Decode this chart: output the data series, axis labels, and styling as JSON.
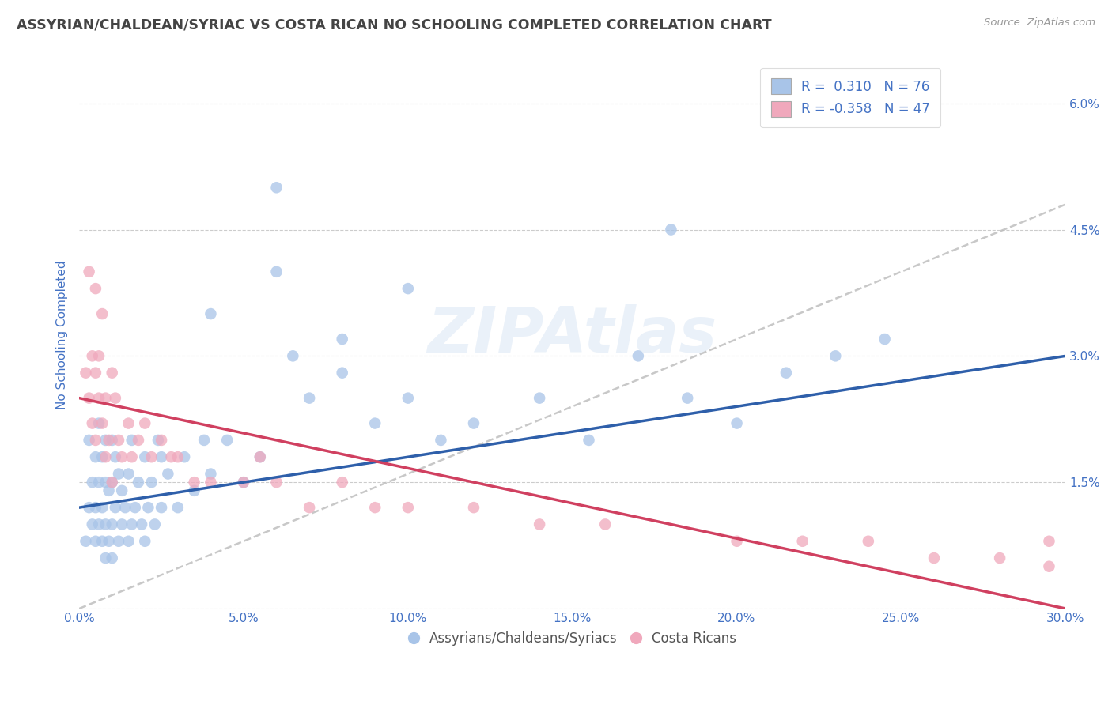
{
  "title": "ASSYRIAN/CHALDEAN/SYRIAC VS COSTA RICAN NO SCHOOLING COMPLETED CORRELATION CHART",
  "source": "Source: ZipAtlas.com",
  "ylabel": "No Schooling Completed",
  "x_min": 0.0,
  "x_max": 0.3,
  "y_min": 0.0,
  "y_max": 0.065,
  "x_ticks": [
    0.0,
    0.05,
    0.1,
    0.15,
    0.2,
    0.25,
    0.3
  ],
  "x_tick_labels": [
    "0.0%",
    "5.0%",
    "10.0%",
    "15.0%",
    "20.0%",
    "25.0%",
    "30.0%"
  ],
  "y_ticks": [
    0.0,
    0.015,
    0.03,
    0.045,
    0.06
  ],
  "y_tick_labels": [
    "",
    "1.5%",
    "3.0%",
    "4.5%",
    "6.0%"
  ],
  "blue_color": "#A8C4E8",
  "pink_color": "#F0A8BC",
  "trend_blue": "#2E5FAA",
  "trend_pink": "#D04060",
  "trend_gray": "#BBBBBB",
  "R_blue": 0.31,
  "N_blue": 76,
  "R_pink": -0.358,
  "N_pink": 47,
  "legend_label_blue": "Assyrians/Chaldeans/Syriacs",
  "legend_label_pink": "Costa Ricans",
  "watermark": "ZIPAtlas",
  "background_color": "#FFFFFF",
  "grid_color": "#CCCCCC",
  "title_color": "#444444",
  "axis_label_color": "#4472C4",
  "tick_color": "#4472C4",
  "blue_trend_start_y": 0.012,
  "blue_trend_end_y": 0.03,
  "pink_trend_start_y": 0.025,
  "pink_trend_end_y": 0.0,
  "gray_trend_start_y": 0.0,
  "gray_trend_end_y": 0.048,
  "blue_scatter_x": [
    0.002,
    0.003,
    0.003,
    0.004,
    0.004,
    0.005,
    0.005,
    0.005,
    0.006,
    0.006,
    0.006,
    0.007,
    0.007,
    0.007,
    0.008,
    0.008,
    0.008,
    0.008,
    0.009,
    0.009,
    0.01,
    0.01,
    0.01,
    0.01,
    0.011,
    0.011,
    0.012,
    0.012,
    0.013,
    0.013,
    0.014,
    0.015,
    0.015,
    0.016,
    0.016,
    0.017,
    0.018,
    0.019,
    0.02,
    0.02,
    0.021,
    0.022,
    0.023,
    0.024,
    0.025,
    0.027,
    0.03,
    0.032,
    0.035,
    0.038,
    0.04,
    0.045,
    0.05,
    0.055,
    0.06,
    0.065,
    0.07,
    0.08,
    0.09,
    0.1,
    0.11,
    0.12,
    0.14,
    0.155,
    0.17,
    0.185,
    0.2,
    0.215,
    0.23,
    0.245,
    0.025,
    0.04,
    0.06,
    0.08,
    0.1,
    0.18
  ],
  "blue_scatter_y": [
    0.008,
    0.012,
    0.02,
    0.01,
    0.015,
    0.008,
    0.012,
    0.018,
    0.01,
    0.015,
    0.022,
    0.008,
    0.012,
    0.018,
    0.006,
    0.01,
    0.015,
    0.02,
    0.008,
    0.014,
    0.006,
    0.01,
    0.015,
    0.02,
    0.012,
    0.018,
    0.008,
    0.016,
    0.01,
    0.014,
    0.012,
    0.008,
    0.016,
    0.01,
    0.02,
    0.012,
    0.015,
    0.01,
    0.008,
    0.018,
    0.012,
    0.015,
    0.01,
    0.02,
    0.012,
    0.016,
    0.012,
    0.018,
    0.014,
    0.02,
    0.016,
    0.02,
    0.015,
    0.018,
    0.05,
    0.03,
    0.025,
    0.028,
    0.022,
    0.025,
    0.02,
    0.022,
    0.025,
    0.02,
    0.03,
    0.025,
    0.022,
    0.028,
    0.03,
    0.032,
    0.018,
    0.035,
    0.04,
    0.032,
    0.038,
    0.045
  ],
  "pink_scatter_x": [
    0.002,
    0.003,
    0.004,
    0.004,
    0.005,
    0.005,
    0.006,
    0.006,
    0.007,
    0.008,
    0.008,
    0.009,
    0.01,
    0.01,
    0.011,
    0.012,
    0.013,
    0.015,
    0.016,
    0.018,
    0.02,
    0.022,
    0.025,
    0.028,
    0.03,
    0.035,
    0.04,
    0.05,
    0.055,
    0.06,
    0.07,
    0.08,
    0.09,
    0.1,
    0.12,
    0.14,
    0.16,
    0.2,
    0.22,
    0.24,
    0.26,
    0.28,
    0.295,
    0.295,
    0.003,
    0.005,
    0.007
  ],
  "pink_scatter_y": [
    0.028,
    0.025,
    0.03,
    0.022,
    0.02,
    0.028,
    0.025,
    0.03,
    0.022,
    0.018,
    0.025,
    0.02,
    0.028,
    0.015,
    0.025,
    0.02,
    0.018,
    0.022,
    0.018,
    0.02,
    0.022,
    0.018,
    0.02,
    0.018,
    0.018,
    0.015,
    0.015,
    0.015,
    0.018,
    0.015,
    0.012,
    0.015,
    0.012,
    0.012,
    0.012,
    0.01,
    0.01,
    0.008,
    0.008,
    0.008,
    0.006,
    0.006,
    0.008,
    0.005,
    0.04,
    0.038,
    0.035
  ]
}
